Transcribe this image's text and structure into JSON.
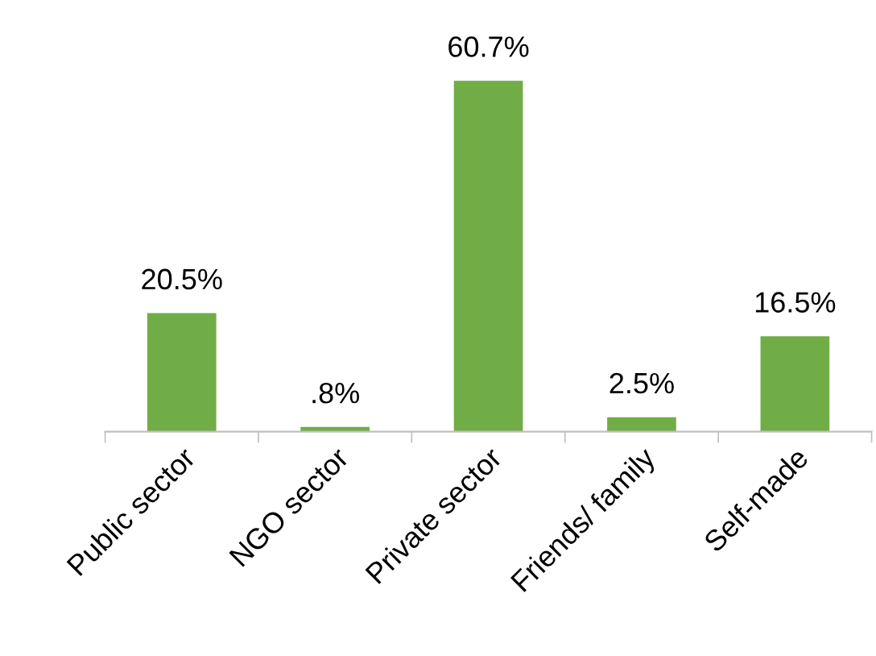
{
  "chart_data": {
    "type": "bar",
    "categories": [
      "Public sector",
      "NGO sector",
      "Private sector",
      "Friends/ family",
      "Self-made"
    ],
    "values": [
      20.5,
      0.8,
      60.7,
      2.5,
      16.5
    ],
    "value_labels": [
      "20.5%",
      ".8%",
      "60.7%",
      "2.5%",
      "16.5%"
    ],
    "color": "#70ad47"
  }
}
